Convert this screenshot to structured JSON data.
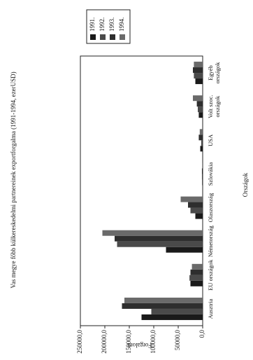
{
  "chart_data": {
    "type": "bar",
    "title": "Vas megye főbb külkereskedelmi partnereinek exportforgalma (1991-1994, ezerUSD)",
    "x_label": "Országok",
    "y_label": "Forgalom",
    "categories": [
      "Ausztria",
      "EU országok",
      "Németország",
      "Olaszország",
      "Szlovákia",
      "USA",
      "Volt szoc. országok",
      "Egyéb országok"
    ],
    "series": [
      {
        "name": "1991.",
        "color": "#1a1a1a",
        "values": [
          125000,
          25000,
          75000,
          15000,
          1000,
          5000,
          8000,
          15000
        ]
      },
      {
        "name": "1992.",
        "color": "#4a4a4a",
        "values": [
          105000,
          27000,
          175000,
          25000,
          1500,
          3000,
          10000,
          18000
        ]
      },
      {
        "name": "1993.",
        "color": "#2e2e2e",
        "values": [
          165000,
          25000,
          180000,
          30000,
          1500,
          8000,
          12000,
          20000
        ]
      },
      {
        "name": "1994.",
        "color": "#6a6a6a",
        "values": [
          160000,
          22000,
          205000,
          45000,
          1000,
          6000,
          20000,
          18000
        ]
      }
    ],
    "ylim": [
      0,
      250000
    ],
    "yticks": [
      {
        "value": 0,
        "label": "0,0"
      },
      {
        "value": 50000,
        "label": "50000,0"
      },
      {
        "value": 100000,
        "label": "100000,0"
      },
      {
        "value": 150000,
        "label": "150000,0"
      },
      {
        "value": 200000,
        "label": "200000,0"
      },
      {
        "value": 250000,
        "label": "250000,0"
      }
    ],
    "legend": "right"
  }
}
